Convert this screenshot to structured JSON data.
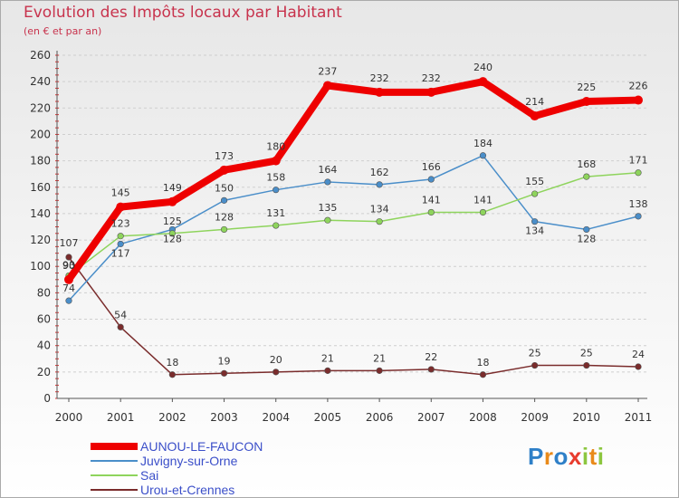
{
  "header": {
    "title": "Evolution des Impôts locaux par Habitant",
    "subtitle": "(en € et par an)"
  },
  "chart_data": {
    "type": "line",
    "title": "Evolution des Impôts locaux par Habitant",
    "subtitle": "(en € et par an)",
    "xlabel": "",
    "ylabel": "",
    "x": [
      "2000",
      "2001",
      "2002",
      "2003",
      "2004",
      "2005",
      "2006",
      "2007",
      "2008",
      "2009",
      "2010",
      "2011"
    ],
    "ylim": [
      0,
      260
    ],
    "yticks": [
      0,
      20,
      40,
      60,
      80,
      100,
      120,
      140,
      160,
      180,
      200,
      220,
      240,
      260
    ],
    "grid": "horizontal dashed",
    "legend_position": "bottom-left",
    "series": [
      {
        "name": "AUNOU-LE-FAUCON",
        "color": "#ee0000",
        "values": [
          90,
          145,
          149,
          173,
          180,
          237,
          232,
          232,
          240,
          214,
          225,
          226
        ]
      },
      {
        "name": "Juvigny-sur-Orne",
        "color": "#4a8ec9",
        "values": [
          74,
          117,
          128,
          150,
          158,
          164,
          162,
          166,
          184,
          134,
          128,
          138
        ]
      },
      {
        "name": "Sai",
        "color": "#8ed45c",
        "values": [
          93,
          123,
          125,
          128,
          131,
          135,
          134,
          141,
          141,
          155,
          168,
          171
        ]
      },
      {
        "name": "Urou-et-Crennes",
        "color": "#7a2c2c",
        "values": [
          107,
          54,
          18,
          19,
          20,
          21,
          21,
          22,
          18,
          25,
          25,
          24
        ]
      }
    ]
  },
  "branding": {
    "logo_letters": [
      "P",
      "r",
      "o",
      "x",
      "i",
      "t",
      "i"
    ],
    "logo_colors": [
      "#2f80c8",
      "#e98a1a",
      "#2f80c8",
      "#e83c2e",
      "#8cc63f",
      "#e98a1a",
      "#8cc63f"
    ]
  }
}
